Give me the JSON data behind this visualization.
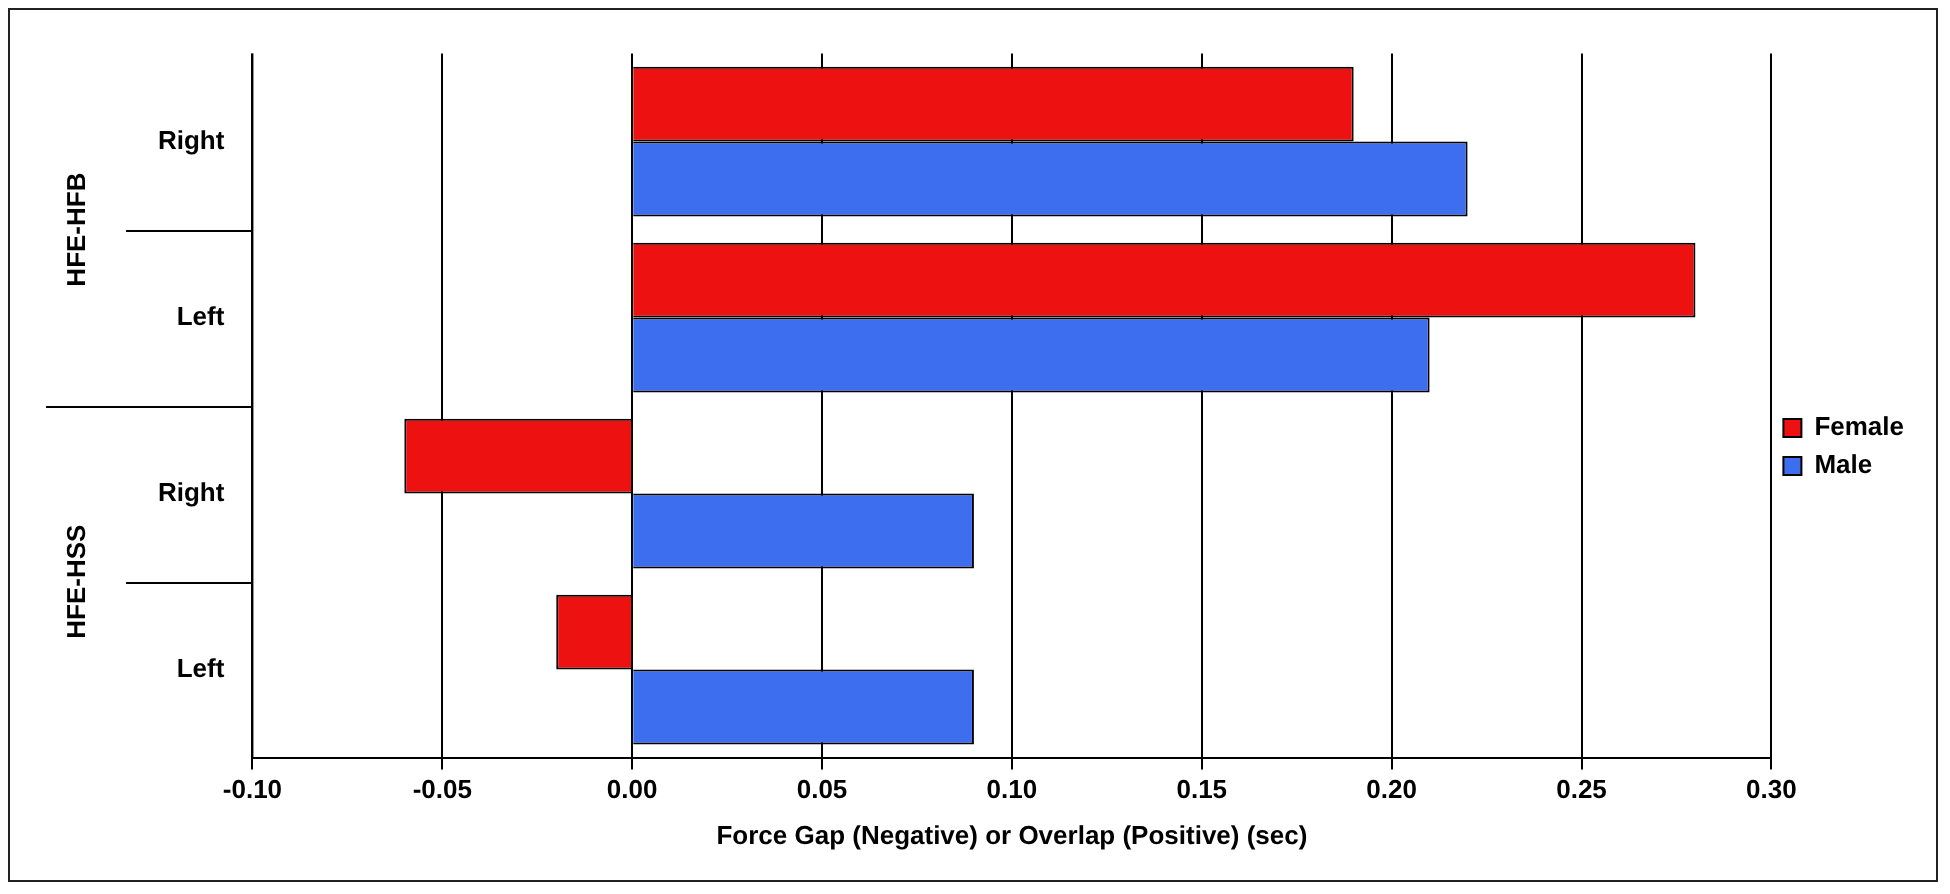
{
  "chart_data": {
    "type": "bar",
    "orientation": "horizontal",
    "categories": [
      "Right",
      "Left",
      "Right",
      "Left"
    ],
    "series": [
      {
        "name": "Female",
        "color": "#ee1111",
        "values": [
          0.19,
          0.28,
          -0.06,
          -0.02
        ]
      },
      {
        "name": "Male",
        "color": "#3e6ef0",
        "values": [
          0.22,
          0.21,
          0.09,
          0.09
        ]
      }
    ],
    "xlim": [
      -0.1,
      0.3
    ],
    "xticks": [
      {
        "value": -0.1,
        "label": "-0.10"
      },
      {
        "value": -0.05,
        "label": "-0.05"
      },
      {
        "value": 0,
        "label": "0.00"
      },
      {
        "value": 0.05,
        "label": "0.05"
      },
      {
        "value": 0.1,
        "label": "0.10"
      },
      {
        "value": 0.15,
        "label": "0.15"
      },
      {
        "value": 0.2,
        "label": "0.20"
      },
      {
        "value": 0.25,
        "label": "0.25"
      },
      {
        "value": 0.3,
        "label": "0.30"
      }
    ],
    "xlabel": "Force Gap (Negative) or Overlap (Positive) (sec)",
    "annotations": [
      "HFE-HFB",
      "HFE-HSS"
    ],
    "grid": "x",
    "legend": "right"
  }
}
